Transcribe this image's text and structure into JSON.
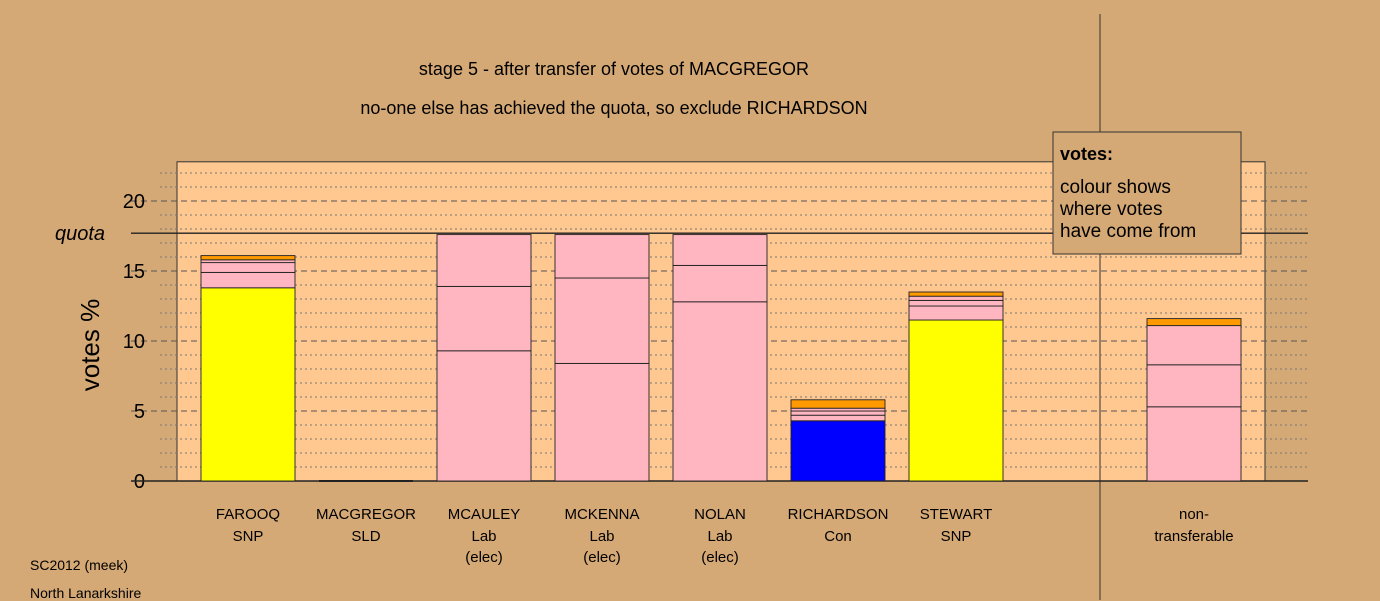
{
  "chart_data": {
    "type": "bar",
    "stacked": true,
    "title": "stage 5 - after transfer of votes of MACGREGOR",
    "subtitle": "no-one else has achieved the quota, so exclude RICHARDSON",
    "ylabel": "votes %",
    "ylim": [
      0,
      22.8
    ],
    "yticks": [
      0,
      5,
      10,
      15,
      20
    ],
    "quota": {
      "label": "quota",
      "value": 17.7
    },
    "grid": "dashed horizontal lines every 1 (minor) and 5 (major)",
    "legend": {
      "position": "top-right",
      "title": "votes:",
      "lines": [
        "colour shows",
        "where votes",
        "have come from"
      ]
    },
    "segment_colors": {
      "SNP": "#ffff00",
      "Lab": "#ffb6c1",
      "Con": "#0000ff",
      "SLD": "#ff9900"
    },
    "bars": [
      {
        "name": "FAROOQ",
        "party": "SNP",
        "note": "",
        "segments": [
          {
            "source": "SNP",
            "value": 13.8
          },
          {
            "source": "Lab",
            "value": 1.1
          },
          {
            "source": "Lab",
            "value": 0.7
          },
          {
            "source": "Lab",
            "value": 0.2
          },
          {
            "source": "SLD",
            "value": 0.3
          }
        ]
      },
      {
        "name": "MACGREGOR",
        "party": "SLD",
        "note": "",
        "segments": []
      },
      {
        "name": "MCAULEY",
        "party": "Lab",
        "note": "(elec)",
        "segments": [
          {
            "source": "Lab",
            "value": 9.3
          },
          {
            "source": "Lab",
            "value": 4.6
          },
          {
            "source": "Lab",
            "value": 3.7
          }
        ]
      },
      {
        "name": "MCKENNA",
        "party": "Lab",
        "note": "(elec)",
        "segments": [
          {
            "source": "Lab",
            "value": 8.4
          },
          {
            "source": "Lab",
            "value": 6.1
          },
          {
            "source": "Lab",
            "value": 3.1
          }
        ]
      },
      {
        "name": "NOLAN",
        "party": "Lab",
        "note": "(elec)",
        "segments": [
          {
            "source": "Lab",
            "value": 12.8
          },
          {
            "source": "Lab",
            "value": 2.6
          },
          {
            "source": "Lab",
            "value": 2.2
          }
        ]
      },
      {
        "name": "RICHARDSON",
        "party": "Con",
        "note": "",
        "segments": [
          {
            "source": "Con",
            "value": 4.3
          },
          {
            "source": "Lab",
            "value": 0.4
          },
          {
            "source": "Lab",
            "value": 0.3
          },
          {
            "source": "Lab",
            "value": 0.2
          },
          {
            "source": "SLD",
            "value": 0.6
          }
        ]
      },
      {
        "name": "STEWART",
        "party": "SNP",
        "note": "",
        "segments": [
          {
            "source": "SNP",
            "value": 11.5
          },
          {
            "source": "Lab",
            "value": 1.0
          },
          {
            "source": "Lab",
            "value": 0.4
          },
          {
            "source": "Lab",
            "value": 0.3
          },
          {
            "source": "SLD",
            "value": 0.3
          }
        ]
      }
    ],
    "nontransferable": {
      "name": "non-",
      "party": "transferable",
      "segments": [
        {
          "source": "Lab",
          "value": 5.3
        },
        {
          "source": "Lab",
          "value": 3.0
        },
        {
          "source": "Lab",
          "value": 2.8
        },
        {
          "source": "SLD",
          "value": 0.5
        }
      ]
    }
  },
  "footer": {
    "line1": "SC2012 (meek)",
    "line2": "North Lanarkshire"
  }
}
